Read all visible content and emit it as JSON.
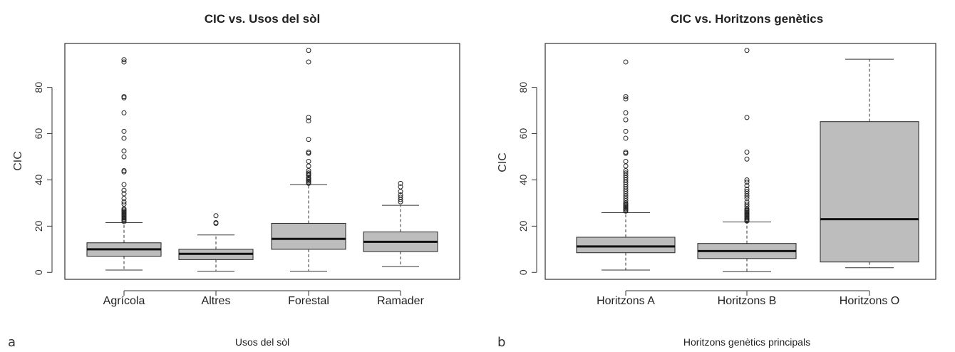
{
  "chart_data": [
    {
      "type": "boxplot",
      "panel_letter": "a",
      "title": "CIC vs. Usos del sòl",
      "xlabel": "Usos del sòl",
      "ylabel": "CIC",
      "ylim": [
        -3,
        99
      ],
      "yticks": [
        0,
        20,
        40,
        60,
        80
      ],
      "box_color": "#bdbdbd",
      "categories": [
        "Agrícola",
        "Altres",
        "Forestal",
        "Ramader"
      ],
      "boxes": [
        {
          "category": "Agrícola",
          "whisker_low": 1,
          "q1": 7,
          "median": 10,
          "q3": 12.8,
          "whisker_high": 21.5,
          "outliers": [
            92,
            91,
            76,
            75.5,
            69,
            61,
            58,
            52.5,
            50,
            44,
            43.5,
            38,
            35.5,
            34,
            32,
            30.5,
            29.5,
            27.5,
            27,
            26.5,
            26,
            25.5,
            25,
            24.5,
            24,
            23.5,
            23,
            22.5,
            22
          ]
        },
        {
          "category": "Altres",
          "whisker_low": 0.5,
          "q1": 5.5,
          "median": 8,
          "q3": 10,
          "whisker_high": 16.2,
          "outliers": [
            24.5,
            21.5,
            21.2
          ]
        },
        {
          "category": "Forestal",
          "whisker_low": 0.5,
          "q1": 10,
          "median": 14.5,
          "q3": 21.2,
          "whisker_high": 38,
          "outliers": [
            96,
            91,
            67,
            65.5,
            57.5,
            52,
            51.5,
            48,
            46,
            44,
            43,
            42.5,
            42,
            41,
            40.5,
            40,
            39.5,
            39,
            38.5
          ]
        },
        {
          "category": "Ramader",
          "whisker_low": 2.5,
          "q1": 9,
          "median": 13.2,
          "q3": 17.5,
          "whisker_high": 29,
          "outliers": [
            38.5,
            37,
            35,
            33.5,
            32.5,
            31.5,
            30.5
          ]
        }
      ]
    },
    {
      "type": "boxplot",
      "panel_letter": "b",
      "title": "CIC vs. Horitzons genètics",
      "xlabel": "Horitzons genètics principals",
      "ylabel": "CIC",
      "ylim": [
        -3,
        99
      ],
      "yticks": [
        0,
        20,
        40,
        60,
        80
      ],
      "box_color": "#bdbdbd",
      "categories": [
        "Horitzons A",
        "Horitzons B",
        "Horitzons O"
      ],
      "boxes": [
        {
          "category": "Horitzons A",
          "whisker_low": 1,
          "q1": 8.5,
          "median": 11.2,
          "q3": 15.2,
          "whisker_high": 25.8,
          "outliers": [
            91,
            76,
            75,
            69,
            66,
            61,
            58,
            52,
            51.5,
            48,
            46,
            44,
            43,
            42,
            41,
            40,
            39,
            38,
            37,
            36,
            35,
            34,
            33,
            32,
            31,
            30,
            29.5,
            29,
            28.5,
            28,
            27.5,
            27,
            26.5
          ]
        },
        {
          "category": "Horitzons B",
          "whisker_low": 0.3,
          "q1": 6,
          "median": 9.2,
          "q3": 12.5,
          "whisker_high": 21.8,
          "outliers": [
            96,
            67,
            52,
            49,
            40,
            39,
            37.5,
            36,
            35,
            34,
            33,
            32,
            30.5,
            29.5,
            28.5,
            27.5,
            27,
            26.5,
            26,
            25.5,
            25,
            24.5,
            24,
            23.5,
            23,
            22.5,
            22.2
          ]
        },
        {
          "category": "Horitzons O",
          "whisker_low": 2,
          "q1": 4.5,
          "median": 23,
          "q3": 65.2,
          "whisker_high": 92.2,
          "outliers": []
        }
      ]
    }
  ]
}
